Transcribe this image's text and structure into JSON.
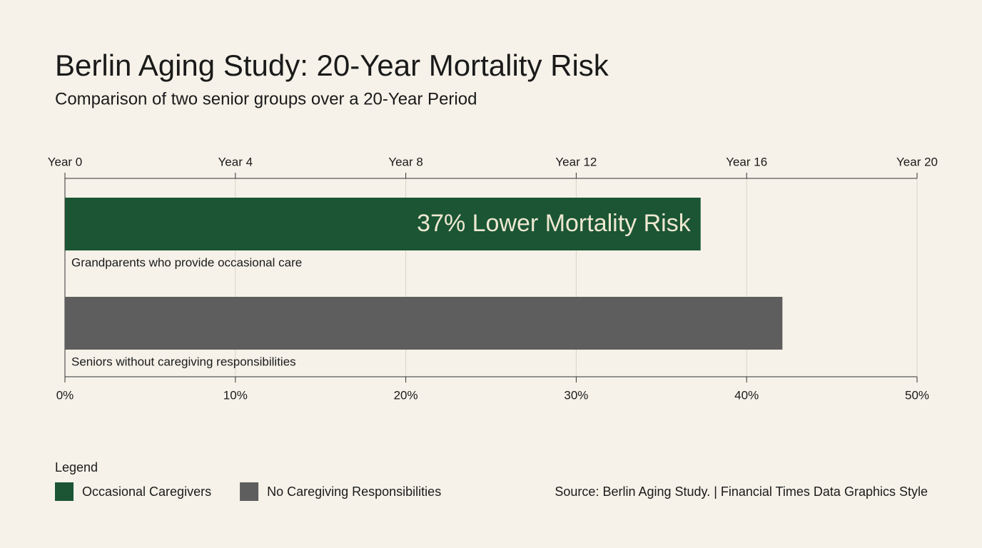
{
  "chart_data": {
    "type": "bar",
    "orientation": "horizontal",
    "title": "Berlin Aging Study: 20-Year Mortality Risk",
    "subtitle": "Comparison of two senior groups over a 20-Year Period",
    "categories": [
      "Grandparents who provide occasional care",
      "Seniors without caregiving responsibilities"
    ],
    "series": [
      {
        "name": "Occasional Caregivers",
        "color": "#1b5534",
        "values": [
          37.3,
          null
        ]
      },
      {
        "name": "No Caregiving Responsibilities",
        "color": "#5f5e5e",
        "values": [
          null,
          42.1
        ]
      }
    ],
    "annotation": "37% Lower Mortality Risk",
    "xlim": [
      0,
      50
    ],
    "xticks": [
      {
        "value": 0,
        "label": "0%"
      },
      {
        "value": 10,
        "label": "10%"
      },
      {
        "value": 20,
        "label": "20%"
      },
      {
        "value": 30,
        "label": "30%"
      },
      {
        "value": 40,
        "label": "40%"
      },
      {
        "value": 50,
        "label": "50%"
      }
    ],
    "x2lim": [
      0,
      20
    ],
    "x2ticks": [
      {
        "value": 0,
        "label": "Year 0"
      },
      {
        "value": 4,
        "label": "Year 4"
      },
      {
        "value": 8,
        "label": "Year 8"
      },
      {
        "value": 12,
        "label": "Year 12"
      },
      {
        "value": 16,
        "label": "Year 16"
      },
      {
        "value": 20,
        "label": "Year 20"
      }
    ],
    "grid": true,
    "legend_title": "Legend",
    "source": "Source: Berlin Aging Study. | Financial Times Data Graphics Style"
  }
}
